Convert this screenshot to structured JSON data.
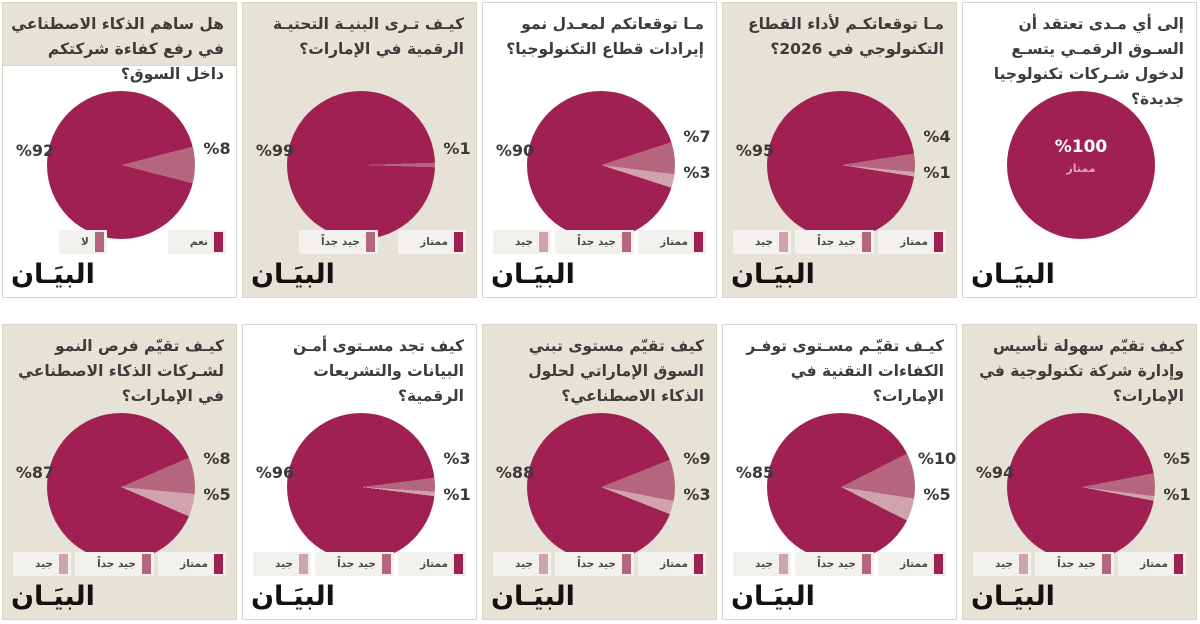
{
  "shared": {
    "logo": "البيَـان",
    "colors": {
      "excellent": "#a02051",
      "very_good": "#b5667e",
      "good": "#cfa2ae",
      "panel_beige": "#e7e2d8",
      "panel_white": "#ffffff",
      "border": "#d8d4ca",
      "title_text": "#3c3c3c",
      "label_text": "#3a3a3a",
      "legend_pill": "#f2f1ed",
      "legend_text": "#4a4a4a"
    }
  },
  "chart_data": [
    {
      "type": "pie",
      "question": "هل ساهم الذكاء الاصطناعي في رفع كفاءة شركتكم داخل السوق؟",
      "slices": [
        {
          "category": "نعم",
          "value": 92,
          "label": "%92",
          "color": "excellent"
        },
        {
          "category": "لا",
          "value": 8,
          "label": "%8",
          "color": "very_good"
        }
      ],
      "legend": [
        {
          "label": "نعم",
          "color": "excellent"
        },
        {
          "label": "لا",
          "color": "very_good"
        }
      ],
      "bg": "white",
      "title_boxed": true
    },
    {
      "type": "pie",
      "question": "كيـف تـرى البنيـة التحتيـة الرقمية في الإمارات؟",
      "slices": [
        {
          "category": "ممتاز",
          "value": 99,
          "label": "%99",
          "color": "excellent"
        },
        {
          "category": "جيد جداً",
          "value": 1,
          "label": "%1",
          "color": "very_good"
        }
      ],
      "legend": [
        {
          "label": "ممتاز",
          "color": "excellent"
        },
        {
          "label": "جيد جداً",
          "color": "very_good"
        }
      ],
      "bg": "beige",
      "title_boxed": false
    },
    {
      "type": "pie",
      "question": "مـا توقعاتكم لمعـدل نمو إيرادات قطاع التكنولوجيا؟",
      "slices": [
        {
          "category": "ممتاز",
          "value": 90,
          "label": "%90",
          "color": "excellent"
        },
        {
          "category": "جيد جداً",
          "value": 7,
          "label": "%7",
          "color": "very_good"
        },
        {
          "category": "جيد",
          "value": 3,
          "label": "%3",
          "color": "good"
        }
      ],
      "legend": [
        {
          "label": "ممتاز",
          "color": "excellent"
        },
        {
          "label": "جيد جداً",
          "color": "very_good"
        },
        {
          "label": "جيد",
          "color": "good"
        }
      ],
      "bg": "white",
      "title_boxed": false
    },
    {
      "type": "pie",
      "question": "مـا توقعاتكـم لأداء القطاع التكنولوجي في 2026؟",
      "slices": [
        {
          "category": "ممتاز",
          "value": 95,
          "label": "%95",
          "color": "excellent"
        },
        {
          "category": "جيد جداً",
          "value": 4,
          "label": "%4",
          "color": "very_good"
        },
        {
          "category": "جيد",
          "value": 1,
          "label": "%1",
          "color": "good"
        }
      ],
      "legend": [
        {
          "label": "ممتاز",
          "color": "excellent"
        },
        {
          "label": "جيد جداً",
          "color": "very_good"
        },
        {
          "label": "جيد",
          "color": "good"
        }
      ],
      "bg": "beige",
      "title_boxed": false
    },
    {
      "type": "pie",
      "question": "إلى أي مـدى تعتقد أن السـوق الرقمـي يتسـع لدخول شـركات تكنولوجيا جديدة؟",
      "slices": [
        {
          "category": "ممتاز",
          "value": 100,
          "label": "%100",
          "color": "excellent"
        }
      ],
      "legend": [],
      "inner_label": {
        "percent": "%100",
        "category": "ممتاز"
      },
      "bg": "white",
      "title_boxed": false
    },
    {
      "type": "pie",
      "question": "كيـف تقيّم فرص النمو لشـركات الذكاء الاصطناعي في الإمارات؟",
      "slices": [
        {
          "category": "ممتاز",
          "value": 87,
          "label": "%87",
          "color": "excellent"
        },
        {
          "category": "جيد جداً",
          "value": 8,
          "label": "%8",
          "color": "very_good"
        },
        {
          "category": "جيد",
          "value": 5,
          "label": "%5",
          "color": "good"
        }
      ],
      "legend": [
        {
          "label": "ممتاز",
          "color": "excellent"
        },
        {
          "label": "جيد جداً",
          "color": "very_good"
        },
        {
          "label": "جيد",
          "color": "good"
        }
      ],
      "bg": "beige",
      "title_boxed": false
    },
    {
      "type": "pie",
      "question": "كيف تجد مسـتوى أمـن البيانات والتشريعات الرقمية؟",
      "slices": [
        {
          "category": "ممتاز",
          "value": 96,
          "label": "%96",
          "color": "excellent"
        },
        {
          "category": "جيد جداً",
          "value": 3,
          "label": "%3",
          "color": "very_good"
        },
        {
          "category": "جيد",
          "value": 1,
          "label": "%1",
          "color": "good"
        }
      ],
      "legend": [
        {
          "label": "ممتاز",
          "color": "excellent"
        },
        {
          "label": "جيد جداً",
          "color": "very_good"
        },
        {
          "label": "جيد",
          "color": "good"
        }
      ],
      "bg": "white",
      "title_boxed": false
    },
    {
      "type": "pie",
      "question": "كيف تقيّم مستوى تبني السوق الإماراتي لحلول الذكاء الاصطناعي؟",
      "slices": [
        {
          "category": "ممتاز",
          "value": 88,
          "label": "%88",
          "color": "excellent"
        },
        {
          "category": "جيد جداً",
          "value": 9,
          "label": "%9",
          "color": "very_good"
        },
        {
          "category": "جيد",
          "value": 3,
          "label": "%3",
          "color": "good"
        }
      ],
      "legend": [
        {
          "label": "ممتاز",
          "color": "excellent"
        },
        {
          "label": "جيد جداً",
          "color": "very_good"
        },
        {
          "label": "جيد",
          "color": "good"
        }
      ],
      "bg": "beige",
      "title_boxed": false
    },
    {
      "type": "pie",
      "question": "كيـف تقيّـم مسـتوى توفـر الكفاءات التقنية في الإمارات؟",
      "slices": [
        {
          "category": "ممتاز",
          "value": 85,
          "label": "%85",
          "color": "excellent"
        },
        {
          "category": "جيد جداً",
          "value": 10,
          "label": "%10",
          "color": "very_good"
        },
        {
          "category": "جيد",
          "value": 5,
          "label": "%5",
          "color": "good"
        }
      ],
      "legend": [
        {
          "label": "ممتاز",
          "color": "excellent"
        },
        {
          "label": "جيد جداً",
          "color": "very_good"
        },
        {
          "label": "جيد",
          "color": "good"
        }
      ],
      "bg": "white",
      "title_boxed": false
    },
    {
      "type": "pie",
      "question": "كيف تقيّم سهولة تأسيس وإدارة شركة تكنولوجية في الإمارات؟",
      "slices": [
        {
          "category": "ممتاز",
          "value": 94,
          "label": "%94",
          "color": "excellent"
        },
        {
          "category": "جيد جداً",
          "value": 5,
          "label": "%5",
          "color": "very_good"
        },
        {
          "category": "جيد",
          "value": 1,
          "label": "%1",
          "color": "good"
        }
      ],
      "legend": [
        {
          "label": "ممتاز",
          "color": "excellent"
        },
        {
          "label": "جيد جداً",
          "color": "very_good"
        },
        {
          "label": "جيد",
          "color": "good"
        }
      ],
      "bg": "beige",
      "title_boxed": false
    }
  ]
}
